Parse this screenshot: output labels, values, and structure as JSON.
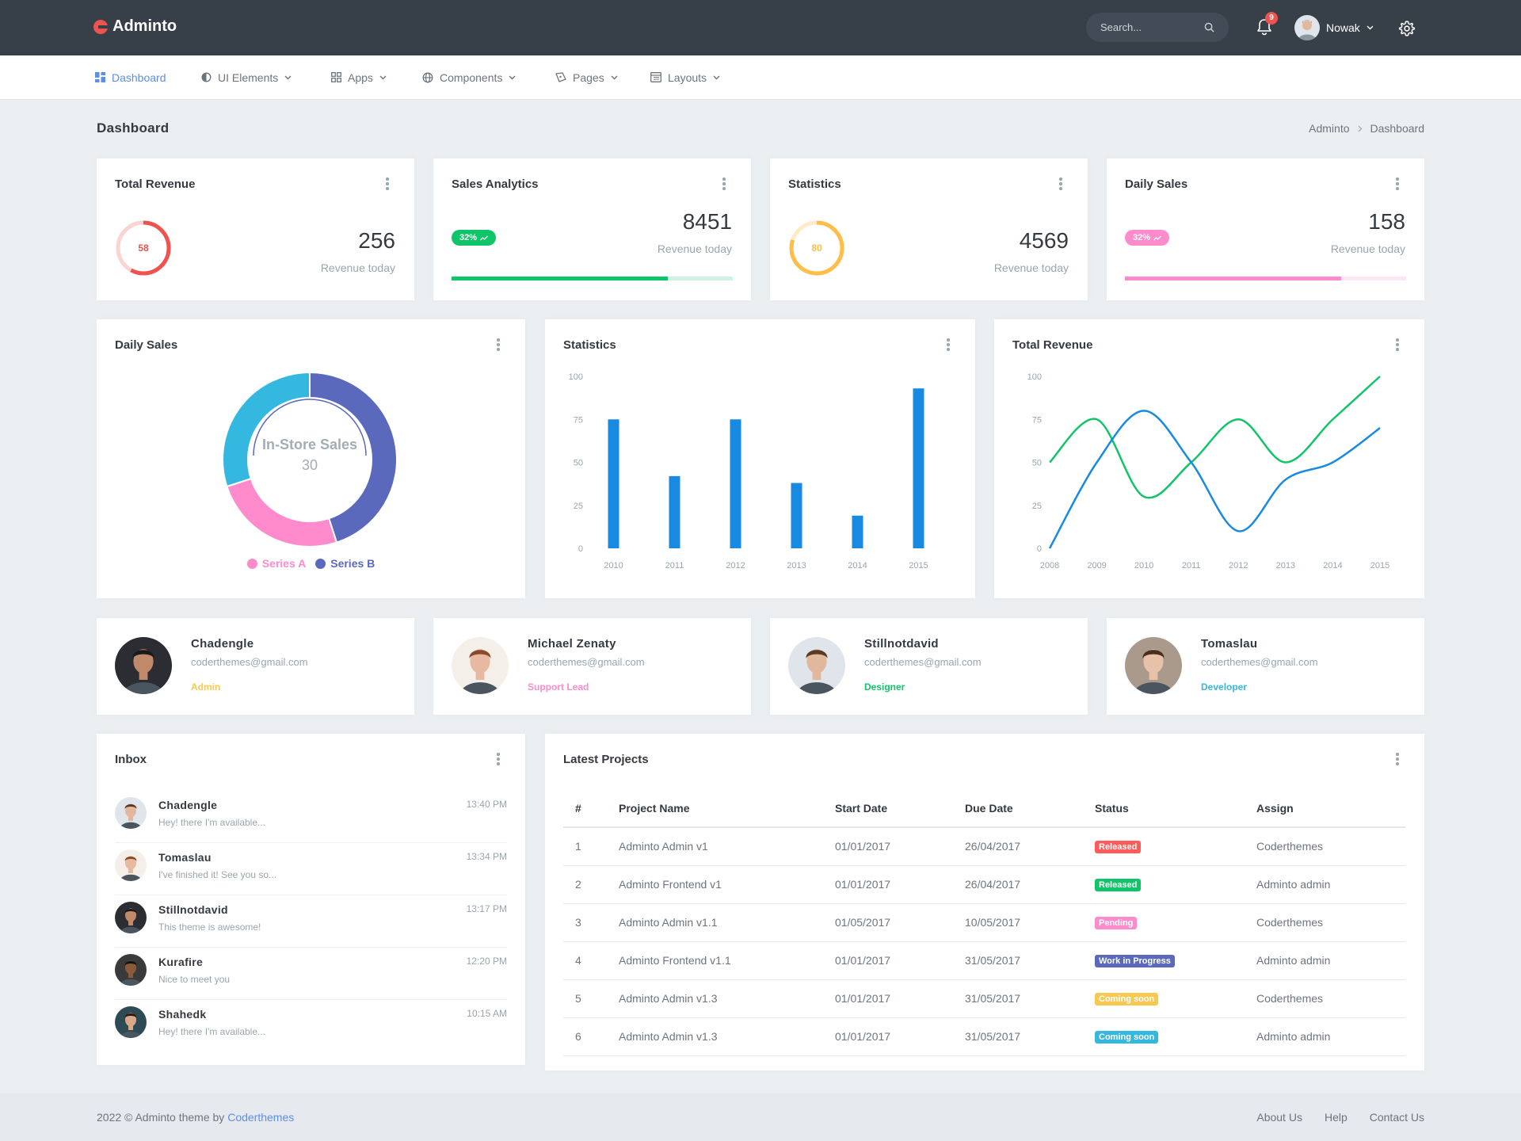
{
  "app": {
    "name": "Adminto"
  },
  "topbar": {
    "search_placeholder": "Search...",
    "notification_count": "9",
    "user_name": "Nowak",
    "icons": {
      "search": "search-icon",
      "bell": "bell-icon",
      "settings": "gear-icon",
      "caret": "chevron-down-icon"
    }
  },
  "nav": {
    "items": [
      {
        "label": "Dashboard",
        "icon": "dashboard-icon",
        "active": true
      },
      {
        "label": "UI Elements",
        "icon": "half-circle-icon"
      },
      {
        "label": "Apps",
        "icon": "grid-icon"
      },
      {
        "label": "Components",
        "icon": "globe-icon"
      },
      {
        "label": "Pages",
        "icon": "pages-icon"
      },
      {
        "label": "Layouts",
        "icon": "layout-icon"
      }
    ]
  },
  "page": {
    "title": "Dashboard",
    "breadcrumb": [
      "Adminto",
      "Dashboard"
    ]
  },
  "stats": [
    {
      "title": "Total Revenue",
      "ring_value": "58",
      "value": "256",
      "label": "Revenue today",
      "color": "#ef5350",
      "fraction": 0.58
    },
    {
      "title": "Sales Analytics",
      "badge": "32%",
      "value": "8451",
      "label": "Revenue today",
      "color": "#10c469",
      "fraction": 0.77
    },
    {
      "title": "Statistics",
      "ring_value": "80",
      "value": "4569",
      "label": "Revenue today",
      "color": "#ffbd4a",
      "fraction": 0.8
    },
    {
      "title": "Daily Sales",
      "badge": "32%",
      "value": "158",
      "label": "Revenue today",
      "color": "#ff8acc",
      "fraction": 0.77
    }
  ],
  "charts": {
    "donut": {
      "title": "Daily Sales",
      "center_label": "In-Store Sales",
      "center_value": "30",
      "legend": [
        {
          "name": "Series A",
          "color": "#ff8acc"
        },
        {
          "name": "Series B",
          "color": "#5b69bc"
        }
      ]
    },
    "bar": {
      "title": "Statistics"
    },
    "line": {
      "title": "Total Revenue"
    }
  },
  "chart_data": [
    {
      "type": "pie",
      "title": "Daily Sales",
      "labels": [
        "Series B",
        "Series A",
        "In-Store Sales"
      ],
      "values": [
        45,
        25,
        30
      ],
      "colors": [
        "#5b69bc",
        "#ff8acc",
        "#35b8e0"
      ]
    },
    {
      "type": "bar",
      "title": "Statistics",
      "categories": [
        "2010",
        "2011",
        "2012",
        "2013",
        "2014",
        "2015"
      ],
      "values": [
        75,
        42,
        75,
        38,
        19,
        93
      ],
      "ylim": [
        0,
        100
      ],
      "yticks": [
        "0",
        "25",
        "50",
        "75",
        "100"
      ],
      "color": "#188ae2"
    },
    {
      "type": "line",
      "title": "Total Revenue",
      "categories": [
        "2008",
        "2009",
        "2010",
        "2011",
        "2012",
        "2013",
        "2014",
        "2015"
      ],
      "ylim": [
        0,
        100
      ],
      "yticks": [
        "0",
        "25",
        "50",
        "75",
        "100"
      ],
      "series": [
        {
          "values": [
            50,
            75,
            30,
            50,
            75,
            50,
            75,
            100
          ],
          "color": "#10c469"
        },
        {
          "values": [
            0,
            50,
            80,
            50,
            10,
            40,
            50,
            70
          ],
          "color": "#188ae2"
        }
      ]
    }
  ],
  "profiles": [
    {
      "name": "Chadengle",
      "email": "coderthemes@gmail.com",
      "role": "Admin",
      "role_color": "#f9c851",
      "avatar_bg": "#2b2d33",
      "skin": "#c08a6a",
      "hair": "#1a1a1a"
    },
    {
      "name": "Michael Zenaty",
      "email": "coderthemes@gmail.com",
      "role": "Support Lead",
      "role_color": "#ff8acc",
      "avatar_bg": "#f4efe9",
      "skin": "#e7b9a0",
      "hair": "#8a4a2a"
    },
    {
      "name": "Stillnotdavid",
      "email": "coderthemes@gmail.com",
      "role": "Designer",
      "role_color": "#10c469",
      "avatar_bg": "#dfe5ea",
      "skin": "#e2b89c",
      "hair": "#5a3a22"
    },
    {
      "name": "Tomaslau",
      "email": "coderthemes@gmail.com",
      "role": "Developer",
      "role_color": "#35b8e0",
      "avatar_bg": "#a99a8c",
      "skin": "#e8c2a8",
      "hair": "#4a2e1e"
    }
  ],
  "inbox": {
    "title": "Inbox",
    "items": [
      {
        "name": "Chadengle",
        "text": "Hey! there I'm available...",
        "time": "13:40 PM",
        "bg": "#dfe5ea",
        "skin": "#e2b89c",
        "hair": "#5a3a22"
      },
      {
        "name": "Tomaslau",
        "text": "I've finished it! See you so...",
        "time": "13:34 PM",
        "bg": "#f4efe9",
        "skin": "#e7b9a0",
        "hair": "#8a4a2a"
      },
      {
        "name": "Stillnotdavid",
        "text": "This theme is awesome!",
        "time": "13:17 PM",
        "bg": "#2b2d33",
        "skin": "#c08a6a",
        "hair": "#1a1a1a"
      },
      {
        "name": "Kurafire",
        "text": "Nice to meet you",
        "time": "12:20 PM",
        "bg": "#3a3a3a",
        "skin": "#8a5a3a",
        "hair": "#111111"
      },
      {
        "name": "Shahedk",
        "text": "Hey! there I'm available...",
        "time": "10:15 AM",
        "bg": "#2e4a55",
        "skin": "#d8a888",
        "hair": "#2a1a10"
      }
    ]
  },
  "projects": {
    "title": "Latest Projects",
    "columns": [
      "#",
      "Project Name",
      "Start Date",
      "Due Date",
      "Status",
      "Assign"
    ],
    "rows": [
      {
        "num": "1",
        "name": "Adminto Admin v1",
        "start": "01/01/2017",
        "due": "26/04/2017",
        "status": "Released",
        "status_color": "#ff5b5b",
        "assign": "Coderthemes"
      },
      {
        "num": "2",
        "name": "Adminto Frontend v1",
        "start": "01/01/2017",
        "due": "26/04/2017",
        "status": "Released",
        "status_color": "#10c469",
        "assign": "Adminto admin"
      },
      {
        "num": "3",
        "name": "Adminto Admin v1.1",
        "start": "01/05/2017",
        "due": "10/05/2017",
        "status": "Pending",
        "status_color": "#ff8acc",
        "assign": "Coderthemes"
      },
      {
        "num": "4",
        "name": "Adminto Frontend v1.1",
        "start": "01/01/2017",
        "due": "31/05/2017",
        "status": "Work in Progress",
        "status_color": "#5b69bc",
        "assign": "Adminto admin"
      },
      {
        "num": "5",
        "name": "Adminto Admin v1.3",
        "start": "01/01/2017",
        "due": "31/05/2017",
        "status": "Coming soon",
        "status_color": "#f9c851",
        "assign": "Coderthemes"
      },
      {
        "num": "6",
        "name": "Adminto Admin v1.3",
        "start": "01/01/2017",
        "due": "31/05/2017",
        "status": "Coming soon",
        "status_color": "#35b8e0",
        "assign": "Adminto admin"
      }
    ]
  },
  "footer": {
    "copyright": "2022 © Adminto theme by",
    "author": "Coderthemes",
    "links": [
      "About Us",
      "Help",
      "Contact Us"
    ]
  }
}
